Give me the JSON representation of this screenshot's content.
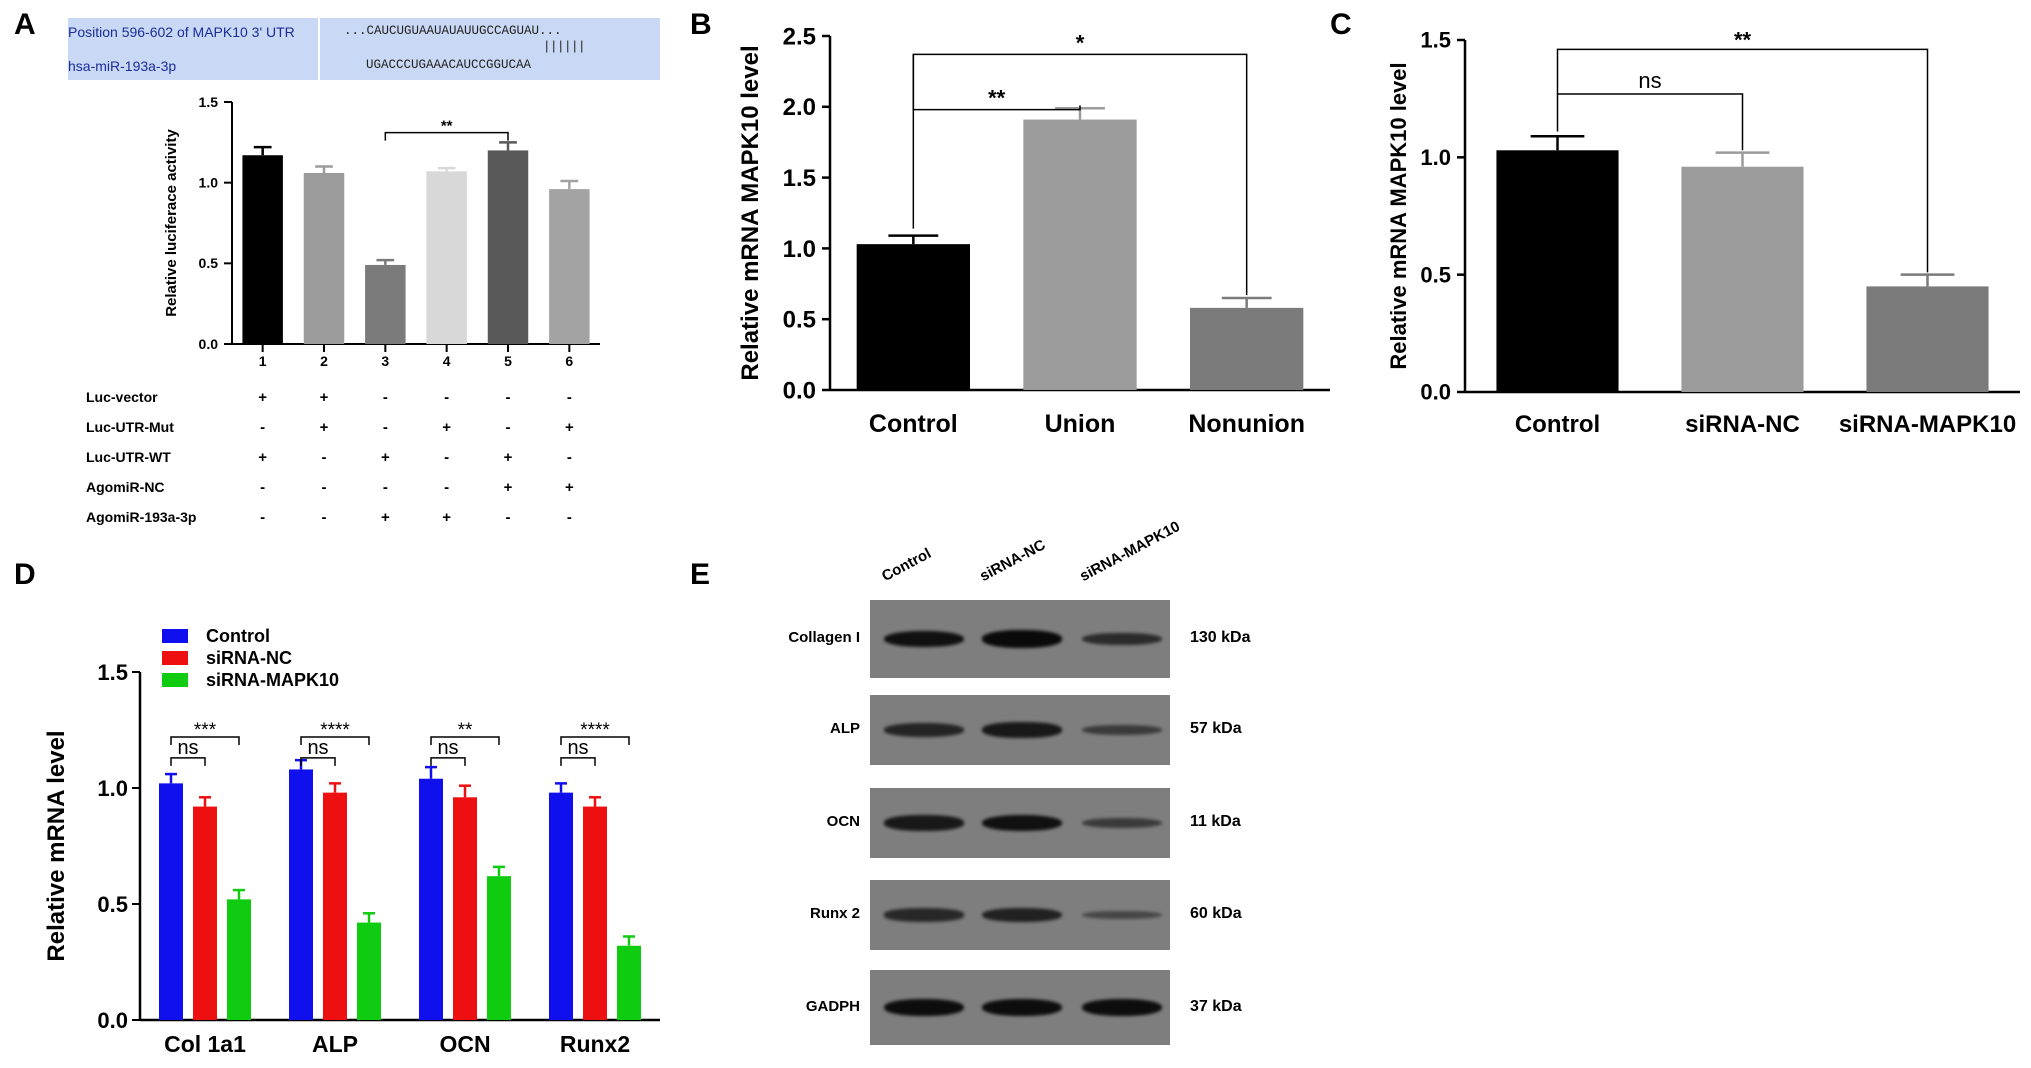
{
  "panel_labels": {
    "a": "A",
    "b": "B",
    "c": "C",
    "d": "D",
    "e": "E"
  },
  "sequence": {
    "position_label": "Position 596-602 of MAPK10 3' UTR",
    "mirna_label": "hsa-miR-193a-3p",
    "target_seq": "...CAUCUGUAAUAUAUUGCCAGUAU...",
    "pairing": "||||||",
    "mirna_seq": "UGACCCUGAAACAUCCGGUCAA"
  },
  "colors": {
    "black": "#000000",
    "gray1": "#9b9b9b",
    "gray2": "#7b7b7b",
    "light": "#d8d8d8",
    "dark": "#595959",
    "gray3": "#a3a3a3",
    "blue": "#1010ee",
    "red": "#ee1010",
    "green": "#10cc10"
  },
  "chart_data": [
    {
      "id": "A",
      "type": "bar",
      "ylabel": "Relative luciferace activity",
      "ylim": [
        0,
        1.5
      ],
      "yticks": [
        "0.0",
        "0.5",
        "1.0",
        "1.5"
      ],
      "categories": [
        "1",
        "2",
        "3",
        "4",
        "5",
        "6"
      ],
      "values": [
        1.17,
        1.06,
        0.49,
        1.07,
        1.2,
        0.96
      ],
      "errors": [
        0.05,
        0.04,
        0.03,
        0.02,
        0.05,
        0.05
      ],
      "bar_colors": [
        "#000000",
        "#9b9b9b",
        "#7b7b7b",
        "#d8d8d8",
        "#595959",
        "#a3a3a3"
      ],
      "significance": [
        {
          "from": 3,
          "to": 5,
          "label": "**"
        }
      ],
      "conditions": [
        {
          "name": "Luc-vector",
          "marks": [
            "+",
            "+",
            "-",
            "-",
            "-",
            "-"
          ]
        },
        {
          "name": "Luc-UTR-Mut",
          "marks": [
            "-",
            "+",
            "-",
            "+",
            "-",
            "+"
          ]
        },
        {
          "name": "Luc-UTR-WT",
          "marks": [
            "+",
            "-",
            "+",
            "-",
            "+",
            "-"
          ]
        },
        {
          "name": "AgomiR-NC",
          "marks": [
            "-",
            "-",
            "-",
            "-",
            "+",
            "+"
          ]
        },
        {
          "name": "AgomiR-193a-3p",
          "marks": [
            "-",
            "-",
            "+",
            "+",
            "-",
            "-"
          ]
        }
      ]
    },
    {
      "id": "B",
      "type": "bar",
      "ylabel": "Relative mRNA MAPK10 level",
      "ylim": [
        0,
        2.5
      ],
      "yticks": [
        "0.0",
        "0.5",
        "1.0",
        "1.5",
        "2.0",
        "2.5"
      ],
      "categories": [
        "Control",
        "Union",
        "Nonunion"
      ],
      "values": [
        1.03,
        1.91,
        0.58
      ],
      "errors": [
        0.06,
        0.08,
        0.07
      ],
      "bar_colors": [
        "#000000",
        "#9b9b9b",
        "#7b7b7b"
      ],
      "significance": [
        {
          "from": 1,
          "to": 2,
          "label": "**"
        },
        {
          "from": 1,
          "to": 3,
          "label": "*"
        }
      ]
    },
    {
      "id": "C",
      "type": "bar",
      "ylabel": "Relative mRNA MAPK10 level",
      "ylim": [
        0,
        1.5
      ],
      "yticks": [
        "0.0",
        "0.5",
        "1.0",
        "1.5"
      ],
      "categories": [
        "Control",
        "siRNA-NC",
        "siRNA-MAPK10"
      ],
      "values": [
        1.03,
        0.96,
        0.45
      ],
      "errors": [
        0.06,
        0.06,
        0.05
      ],
      "bar_colors": [
        "#000000",
        "#9b9b9b",
        "#7b7b7b"
      ],
      "significance": [
        {
          "from": 1,
          "to": 2,
          "label": "ns"
        },
        {
          "from": 1,
          "to": 3,
          "label": "**"
        }
      ]
    },
    {
      "id": "D",
      "type": "bar",
      "ylabel": "Relative mRNA level",
      "ylim": [
        0,
        1.5
      ],
      "yticks": [
        "0.0",
        "0.5",
        "1.0",
        "1.5"
      ],
      "categories": [
        "Col 1a1",
        "ALP",
        "OCN",
        "Runx2"
      ],
      "series": [
        {
          "name": "Control",
          "color": "#1010ee",
          "values": [
            1.02,
            1.08,
            1.04,
            0.98
          ],
          "errors": [
            0.04,
            0.04,
            0.05,
            0.04
          ]
        },
        {
          "name": "siRNA-NC",
          "color": "#ee1010",
          "values": [
            0.92,
            0.98,
            0.96,
            0.92
          ],
          "errors": [
            0.04,
            0.04,
            0.05,
            0.04
          ]
        },
        {
          "name": "siRNA-MAPK10",
          "color": "#10cc10",
          "values": [
            0.52,
            0.42,
            0.62,
            0.32
          ],
          "errors": [
            0.04,
            0.04,
            0.04,
            0.04
          ]
        }
      ],
      "legend_position": "top-left",
      "significance": [
        {
          "ns": "ns",
          "far": "***"
        },
        {
          "ns": "ns",
          "far": "****"
        },
        {
          "ns": "ns",
          "far": "**"
        },
        {
          "ns": "ns",
          "far": "****"
        }
      ]
    }
  ],
  "western_blot": {
    "lanes": [
      "Control",
      "siRNA-NC",
      "siRNA-MAPK10"
    ],
    "proteins": [
      {
        "name": "Collagen I",
        "kda": "130 kDa",
        "intensity": [
          0.9,
          1.0,
          0.55
        ]
      },
      {
        "name": "ALP",
        "kda": "57 kDa",
        "intensity": [
          0.65,
          0.8,
          0.35
        ]
      },
      {
        "name": "OCN",
        "kda": "11 kDa",
        "intensity": [
          0.8,
          0.9,
          0.35
        ]
      },
      {
        "name": "Runx 2",
        "kda": "60 kDa",
        "intensity": [
          0.6,
          0.7,
          0.2
        ]
      },
      {
        "name": "GADPH",
        "kda": "37 kDa",
        "intensity": [
          0.95,
          0.95,
          0.95
        ]
      }
    ]
  }
}
